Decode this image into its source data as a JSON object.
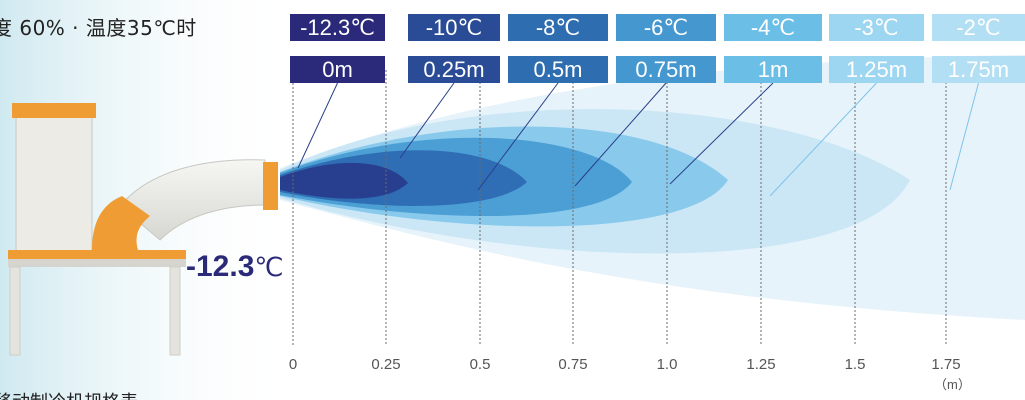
{
  "condition_text": "度 60% · 温度35℃时",
  "caption_text": "移动制冷机规格表",
  "outlet_temp": {
    "value": "-12.3",
    "unit": "℃"
  },
  "points": [
    {
      "temp": "-12.3℃",
      "dist": "0m",
      "color": "#2b2a7a"
    },
    {
      "temp": "-10℃",
      "dist": "0.25m",
      "color": "#2a4c97"
    },
    {
      "temp": "-8℃",
      "dist": "0.5m",
      "color": "#2f6db1"
    },
    {
      "temp": "-6℃",
      "dist": "0.75m",
      "color": "#4597cf"
    },
    {
      "temp": "-4℃",
      "dist": "1m",
      "color": "#6bbfe7"
    },
    {
      "temp": "-3℃",
      "dist": "1.25m",
      "color": "#9dd6f1"
    },
    {
      "temp": "-2℃",
      "dist": "1.75m",
      "color": "#b3dff4"
    }
  ],
  "axis": {
    "ticks": [
      "0",
      "0.25",
      "0.5",
      "0.75",
      "1.0",
      "1.25",
      "1.5",
      "1.75"
    ],
    "unit": "（m）"
  }
}
